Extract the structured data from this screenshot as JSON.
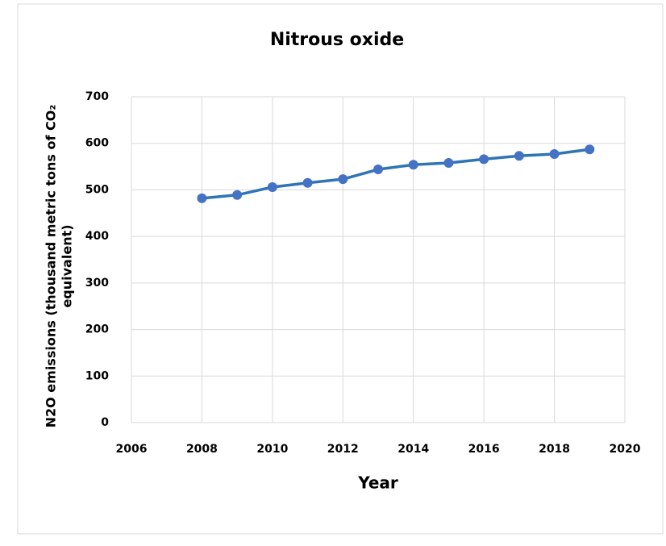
{
  "chart_data": {
    "type": "line",
    "title": "Nitrous oxide",
    "xlabel": "Year",
    "ylabel": [
      "N2O emissions (thousand metric tons of CO₂",
      "equivalent)"
    ],
    "x": [
      2008,
      2009,
      2010,
      2011,
      2012,
      2013,
      2014,
      2015,
      2016,
      2017,
      2018,
      2019
    ],
    "series": [
      {
        "name": "N2O emissions",
        "color": "#2e75b6",
        "marker_color": "#4472c4",
        "values": [
          482,
          489,
          506,
          515,
          523,
          544,
          554,
          558,
          566,
          573,
          577,
          587
        ]
      }
    ],
    "xlim": [
      2006,
      2020
    ],
    "xticks": [
      2006,
      2008,
      2010,
      2012,
      2014,
      2016,
      2018,
      2020
    ],
    "ylim": [
      0,
      700
    ],
    "yticks": [
      0,
      100,
      200,
      300,
      400,
      500,
      600,
      700
    ],
    "grid": true
  }
}
